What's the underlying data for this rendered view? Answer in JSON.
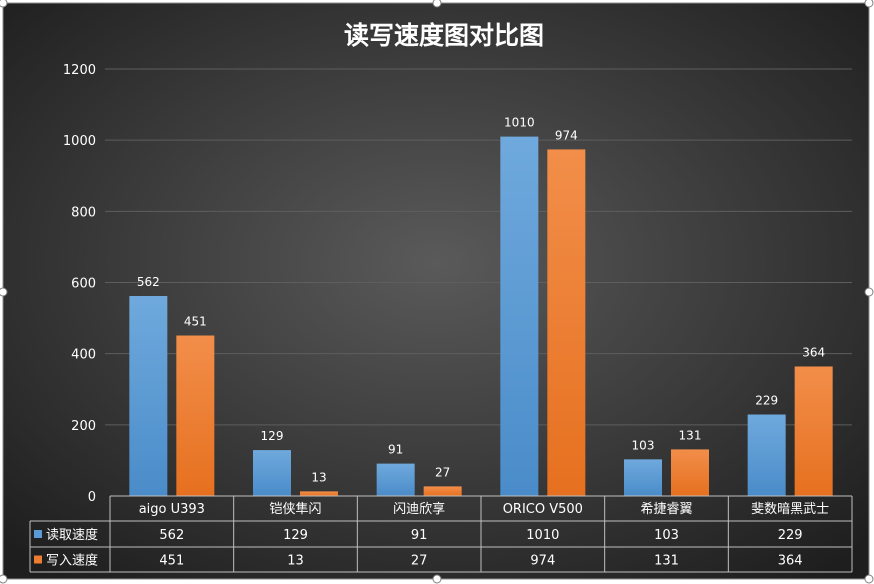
{
  "chart_data": {
    "type": "bar",
    "title": "读写速度图对比图",
    "categories": [
      "aigo U393",
      "铠侠隼闪",
      "闪迪欣享",
      "ORICO V500",
      "希捷睿翼",
      "斐数暗黑武士"
    ],
    "series": [
      {
        "name": "读取速度",
        "values": [
          562,
          129,
          91,
          1010,
          103,
          229
        ],
        "color": "#5b9bd5"
      },
      {
        "name": "写入速度",
        "values": [
          451,
          13,
          27,
          974,
          131,
          364
        ],
        "color": "#ed7d31"
      }
    ],
    "ylim": [
      0,
      1200
    ],
    "yticks": [
      0,
      200,
      400,
      600,
      800,
      1000,
      1200
    ],
    "grid": true,
    "legend": "data-table",
    "data_labels": true,
    "colors": {
      "background_center": "#5a5a5a",
      "background_edge": "#1e1e1e",
      "gridline": "#5e5e5e",
      "table_border": "#bfbfbf",
      "text": "#ffffff"
    }
  }
}
